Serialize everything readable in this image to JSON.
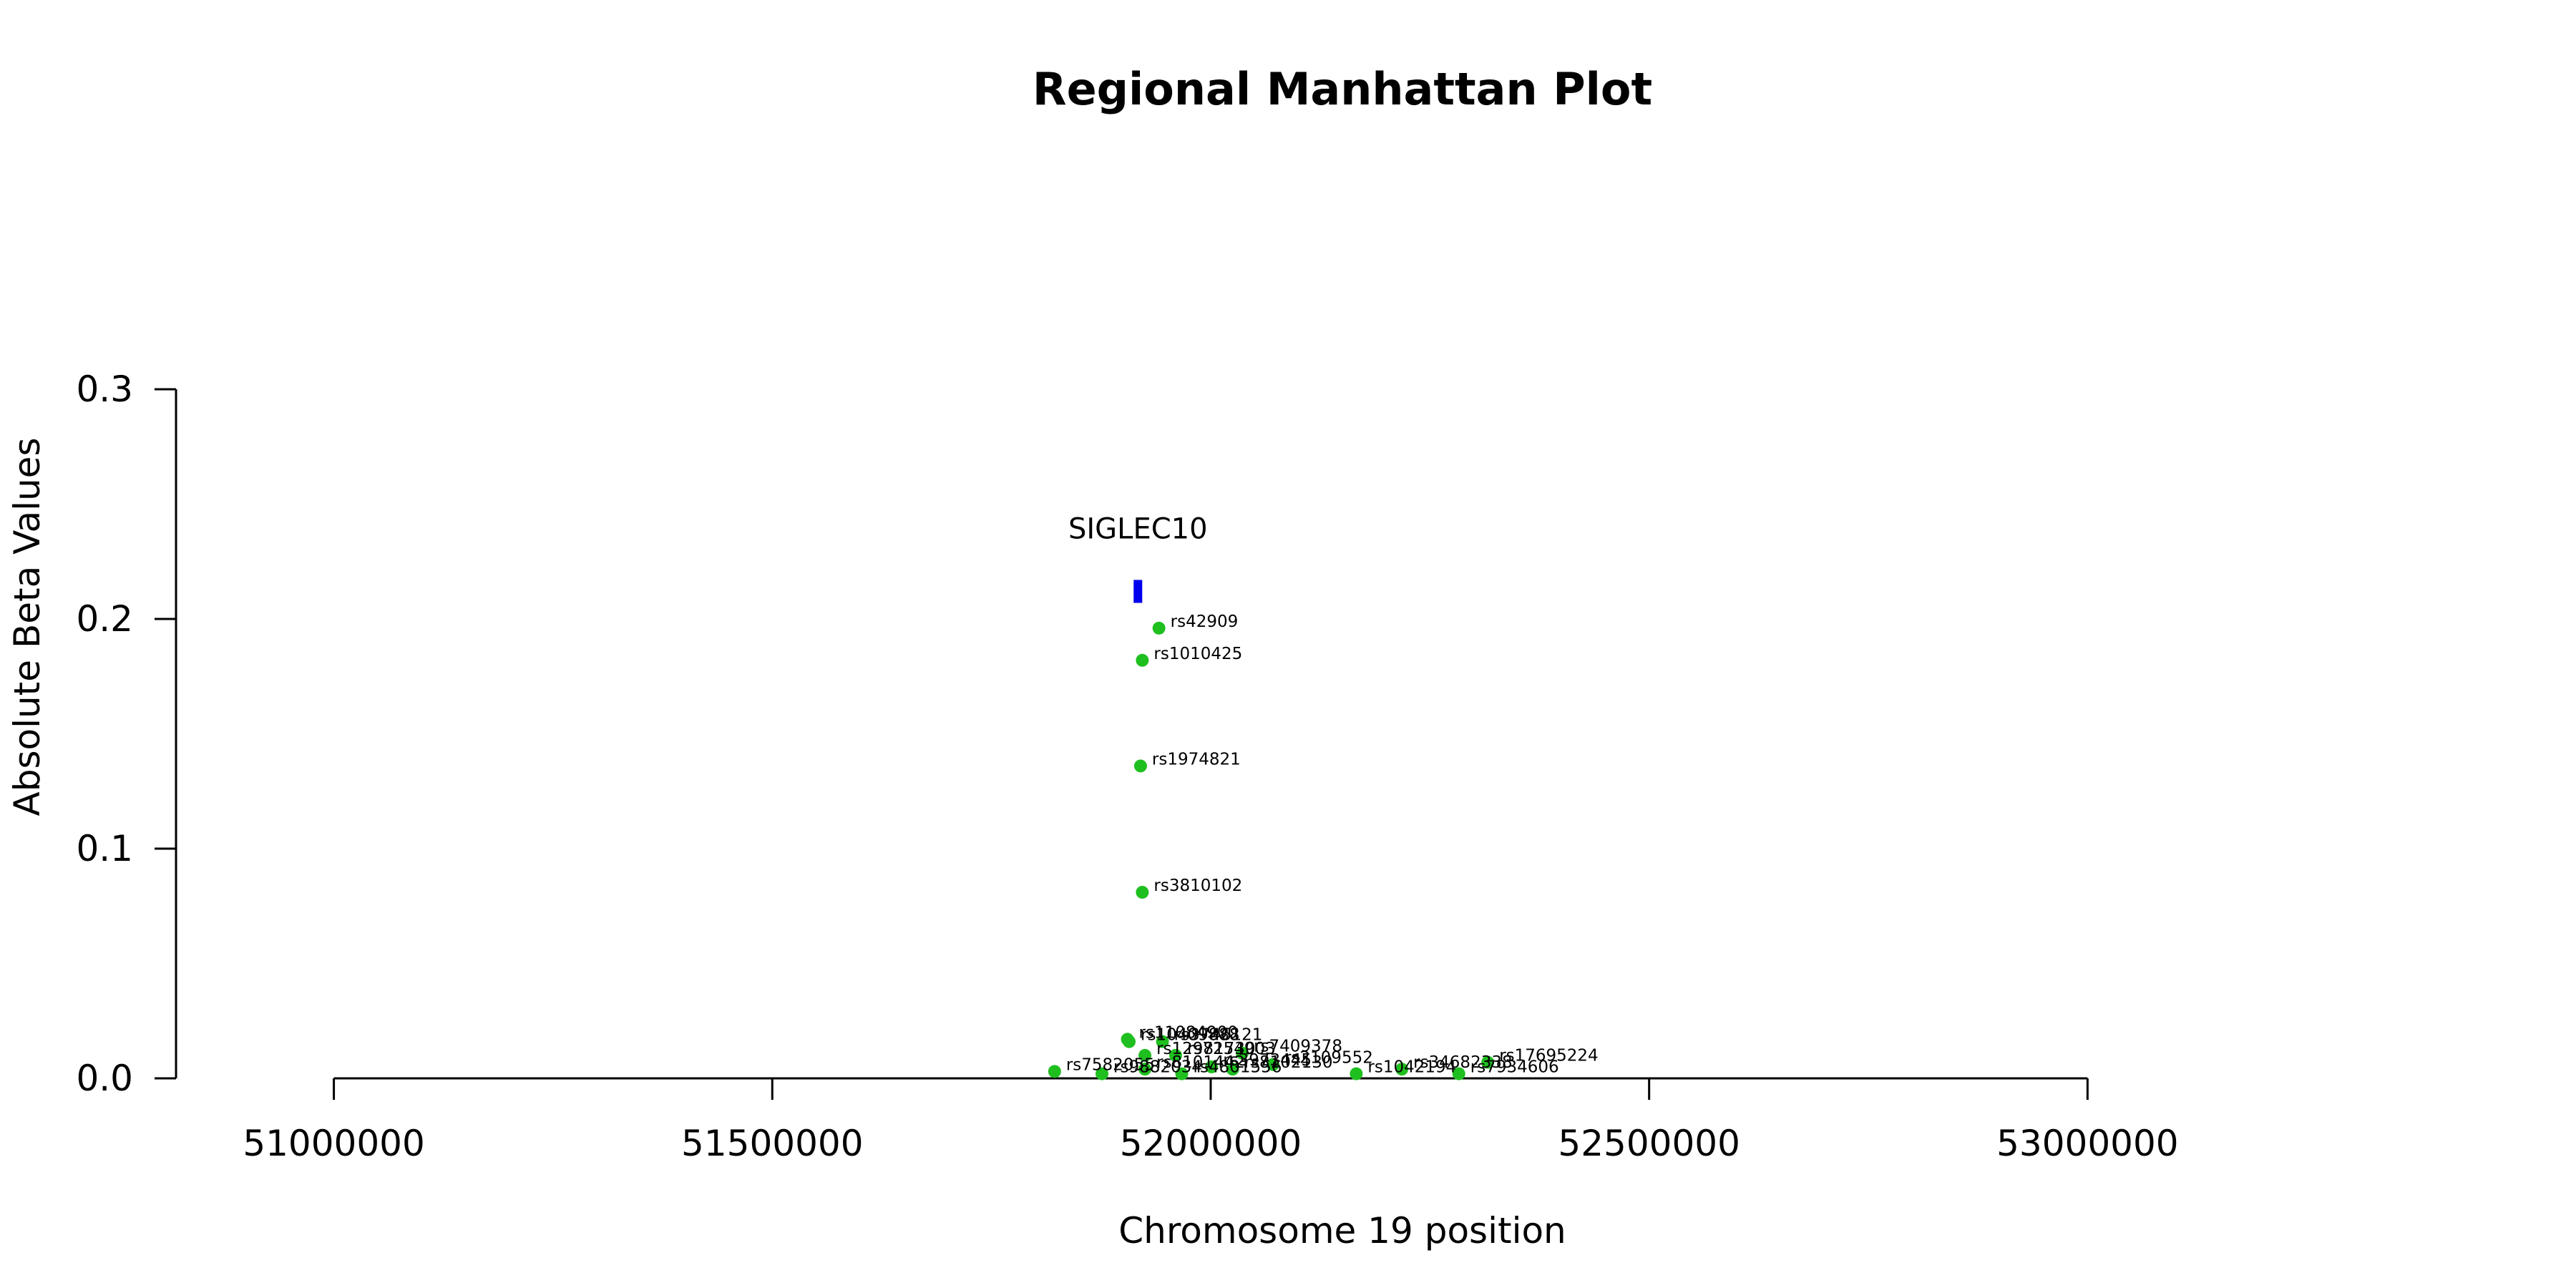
{
  "chart_data": {
    "type": "scatter",
    "title": "Regional Manhattan Plot",
    "xlabel": "Chromosome 19 position",
    "ylabel": "Absolute Beta Values",
    "xlim": [
      50820000,
      53340000
    ],
    "ylim": [
      0,
      0.3
    ],
    "x_ticks": [
      51000000,
      51500000,
      52000000,
      52500000,
      53000000
    ],
    "y_ticks": [
      0.0,
      0.1,
      0.2,
      0.3
    ],
    "x_tick_labels": [
      "51000000",
      "51500000",
      "52000000",
      "52500000",
      "53000000"
    ],
    "y_tick_labels": [
      "0.0",
      "0.1",
      "0.2",
      "0.3"
    ],
    "grid": false,
    "point_color": "#1fbf1f",
    "gene_color": "#0000ee",
    "gene": {
      "name": "SIGLEC10",
      "x": 51917000,
      "y_low": 0.207,
      "y_high": 0.217
    },
    "points": [
      {
        "x": 51941000,
        "y": 0.196,
        "label": "rs42909"
      },
      {
        "x": 51922000,
        "y": 0.182,
        "label": "rs1010425"
      },
      {
        "x": 51920000,
        "y": 0.136,
        "label": "rs1974821"
      },
      {
        "x": 51922000,
        "y": 0.081,
        "label": "rs3810102"
      },
      {
        "x": 51905000,
        "y": 0.017,
        "label": "rs11084900"
      },
      {
        "x": 51907000,
        "y": 0.016,
        "label": "rs10409888"
      },
      {
        "x": 51945000,
        "y": 0.016,
        "label": "rs3746121"
      },
      {
        "x": 51925000,
        "y": 0.01,
        "label": "rs12981730"
      },
      {
        "x": 51960000,
        "y": 0.01,
        "label": "rs7254903"
      },
      {
        "x": 52036000,
        "y": 0.011,
        "label": "rs7409378"
      },
      {
        "x": 51822000,
        "y": 0.003,
        "label": "rs7582055"
      },
      {
        "x": 51876000,
        "y": 0.002,
        "label": "rs9882034"
      },
      {
        "x": 51925000,
        "y": 0.004,
        "label": "rs8101442"
      },
      {
        "x": 51967000,
        "y": 0.002,
        "label": "rs4801556"
      },
      {
        "x": 52001000,
        "y": 0.005,
        "label": "rs3973445"
      },
      {
        "x": 52025000,
        "y": 0.004,
        "label": "rs8102130"
      },
      {
        "x": 52071000,
        "y": 0.006,
        "label": "rs2109552"
      },
      {
        "x": 52166000,
        "y": 0.002,
        "label": "rs1042194"
      },
      {
        "x": 52218000,
        "y": 0.004,
        "label": "rs34682338"
      },
      {
        "x": 52283000,
        "y": 0.002,
        "label": "rs7934606"
      },
      {
        "x": 52316000,
        "y": 0.007,
        "label": "rs17695224"
      }
    ]
  }
}
